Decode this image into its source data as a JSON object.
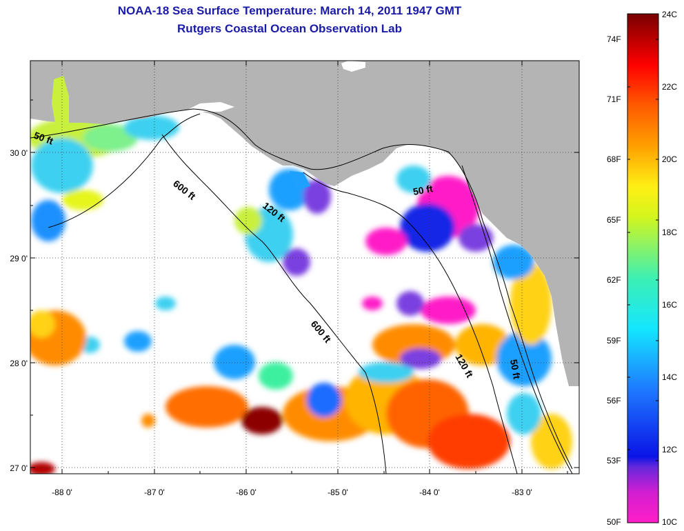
{
  "title": {
    "line1": "NOAA-18 Sea Surface Temperature:  March 14, 2011 1947 GMT",
    "line2": "Rutgers Coastal Ocean Observation Lab"
  },
  "map": {
    "lat_ticks": [
      "27 0'",
      "28 0'",
      "29 0'",
      "30 0'"
    ],
    "lon_ticks": [
      "-88 0'",
      "-87 0'",
      "-86 0'",
      "-85 0'",
      "-84 0'",
      "-83 0'"
    ],
    "contour_labels": [
      "50 ft",
      "600 ft",
      "120 ft",
      "50 ft",
      "600 ft",
      "120 ft",
      "50 ft"
    ],
    "colors": {
      "land": "#b4b4b4",
      "ocean_nodata": "#ffffff",
      "contour": "#000000"
    }
  },
  "colorbar": {
    "fahrenheit_labels": [
      "74F",
      "71F",
      "68F",
      "65F",
      "62F",
      "59F",
      "56F",
      "53F",
      "50F"
    ],
    "celsius_labels": [
      "24C",
      "22C",
      "20C",
      "18C",
      "16C",
      "14C",
      "12C",
      "10C"
    ],
    "range_c": [
      10,
      24
    ],
    "colors": [
      "#ff1ec8",
      "#9a2ae0",
      "#1428e6",
      "#1ea0ff",
      "#14f0f0",
      "#3cf0a0",
      "#e6f51e",
      "#ffd214",
      "#ff8c00",
      "#ff3c00",
      "#e60000",
      "#780000"
    ]
  }
}
